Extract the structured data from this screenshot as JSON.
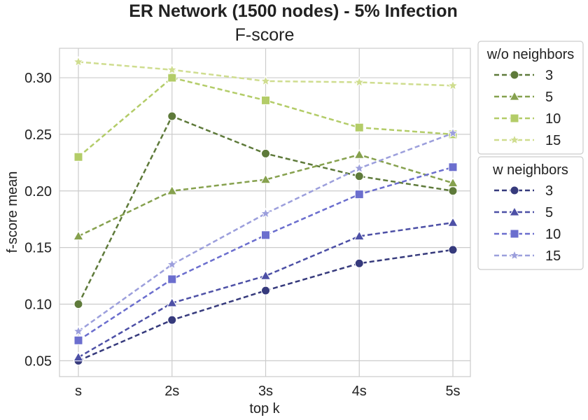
{
  "chart_data": {
    "type": "line",
    "suptitle": "ER Network (1500 nodes) - 5% Infection",
    "title": "F-score",
    "xlabel": "top k",
    "ylabel": "f-score mean",
    "categories": [
      "s",
      "2s",
      "3s",
      "4s",
      "5s"
    ],
    "ylim": [
      0.036,
      0.326
    ],
    "yticks": [
      0.05,
      0.1,
      0.15,
      0.2,
      0.25,
      0.3
    ],
    "ytick_labels": [
      "0.05",
      "0.10",
      "0.15",
      "0.20",
      "0.25",
      "0.30"
    ],
    "grid": true,
    "legend_placement": "outside right",
    "groups": [
      {
        "title": "w/o neighbors",
        "series": [
          {
            "name": "3",
            "marker": "circle",
            "color": "#5e7a3a",
            "values": [
              0.1,
              0.266,
              0.233,
              0.213,
              0.2
            ]
          },
          {
            "name": "5",
            "marker": "triangle",
            "color": "#86a14e",
            "values": [
              0.16,
              0.2,
              0.21,
              0.232,
              0.207
            ]
          },
          {
            "name": "10",
            "marker": "square",
            "color": "#b3cc68",
            "values": [
              0.23,
              0.3,
              0.28,
              0.256,
              0.25
            ]
          },
          {
            "name": "15",
            "marker": "star",
            "color": "#cfdd8f",
            "values": [
              0.314,
              0.307,
              0.297,
              0.296,
              0.293
            ]
          }
        ]
      },
      {
        "title": "w neighbors",
        "series": [
          {
            "name": "3",
            "marker": "circle",
            "color": "#363a7c",
            "values": [
              0.05,
              0.086,
              0.112,
              0.136,
              0.148
            ]
          },
          {
            "name": "5",
            "marker": "triangle",
            "color": "#4d50a6",
            "values": [
              0.053,
              0.101,
              0.125,
              0.16,
              0.172
            ]
          },
          {
            "name": "10",
            "marker": "square",
            "color": "#6b6ece",
            "values": [
              0.068,
              0.122,
              0.161,
              0.197,
              0.221
            ]
          },
          {
            "name": "15",
            "marker": "star",
            "color": "#9c9fdc",
            "values": [
              0.076,
              0.135,
              0.18,
              0.22,
              0.251
            ]
          }
        ]
      }
    ]
  }
}
